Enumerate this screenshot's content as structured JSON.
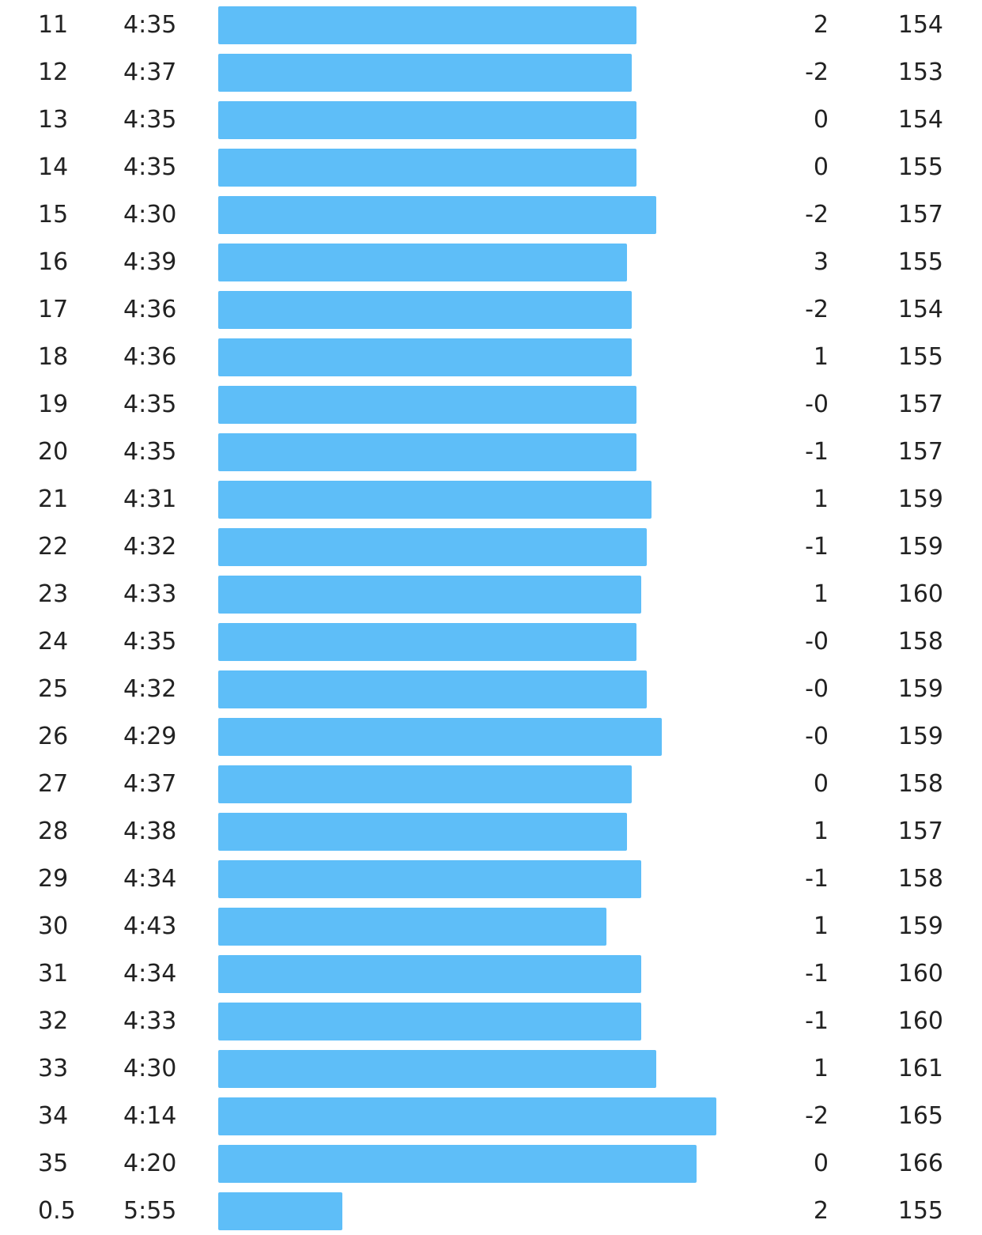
{
  "colors": {
    "bar": "#5ebef8",
    "text": "#222222",
    "background": "#ffffff"
  },
  "splits": [
    {
      "km": "11",
      "pace": "4:35",
      "pace_fraction": 0.839,
      "elevation": "2",
      "heart_rate": "154"
    },
    {
      "km": "12",
      "pace": "4:37",
      "pace_fraction": 0.83,
      "elevation": "-2",
      "heart_rate": "153"
    },
    {
      "km": "13",
      "pace": "4:35",
      "pace_fraction": 0.839,
      "elevation": "0",
      "heart_rate": "154"
    },
    {
      "km": "14",
      "pace": "4:35",
      "pace_fraction": 0.839,
      "elevation": "0",
      "heart_rate": "155"
    },
    {
      "km": "15",
      "pace": "4:30",
      "pace_fraction": 0.879,
      "elevation": "-2",
      "heart_rate": "157"
    },
    {
      "km": "16",
      "pace": "4:39",
      "pace_fraction": 0.82,
      "elevation": "3",
      "heart_rate": "155"
    },
    {
      "km": "17",
      "pace": "4:36",
      "pace_fraction": 0.83,
      "elevation": "-2",
      "heart_rate": "154"
    },
    {
      "km": "18",
      "pace": "4:36",
      "pace_fraction": 0.83,
      "elevation": "1",
      "heart_rate": "155"
    },
    {
      "km": "19",
      "pace": "4:35",
      "pace_fraction": 0.839,
      "elevation": "-0",
      "heart_rate": "157"
    },
    {
      "km": "20",
      "pace": "4:35",
      "pace_fraction": 0.839,
      "elevation": "-1",
      "heart_rate": "157"
    },
    {
      "km": "21",
      "pace": "4:31",
      "pace_fraction": 0.87,
      "elevation": "1",
      "heart_rate": "159"
    },
    {
      "km": "22",
      "pace": "4:32",
      "pace_fraction": 0.86,
      "elevation": "-1",
      "heart_rate": "159"
    },
    {
      "km": "23",
      "pace": "4:33",
      "pace_fraction": 0.849,
      "elevation": "1",
      "heart_rate": "160"
    },
    {
      "km": "24",
      "pace": "4:35",
      "pace_fraction": 0.839,
      "elevation": "-0",
      "heart_rate": "158"
    },
    {
      "km": "25",
      "pace": "4:32",
      "pace_fraction": 0.86,
      "elevation": "-0",
      "heart_rate": "159"
    },
    {
      "km": "26",
      "pace": "4:29",
      "pace_fraction": 0.89,
      "elevation": "-0",
      "heart_rate": "159"
    },
    {
      "km": "27",
      "pace": "4:37",
      "pace_fraction": 0.83,
      "elevation": "0",
      "heart_rate": "158"
    },
    {
      "km": "28",
      "pace": "4:38",
      "pace_fraction": 0.82,
      "elevation": "1",
      "heart_rate": "157"
    },
    {
      "km": "29",
      "pace": "4:34",
      "pace_fraction": 0.849,
      "elevation": "-1",
      "heart_rate": "158"
    },
    {
      "km": "30",
      "pace": "4:43",
      "pace_fraction": 0.779,
      "elevation": "1",
      "heart_rate": "159"
    },
    {
      "km": "31",
      "pace": "4:34",
      "pace_fraction": 0.849,
      "elevation": "-1",
      "heart_rate": "160"
    },
    {
      "km": "32",
      "pace": "4:33",
      "pace_fraction": 0.849,
      "elevation": "-1",
      "heart_rate": "160"
    },
    {
      "km": "33",
      "pace": "4:30",
      "pace_fraction": 0.879,
      "elevation": "1",
      "heart_rate": "161"
    },
    {
      "km": "34",
      "pace": "4:14",
      "pace_fraction": 1.0,
      "elevation": "-2",
      "heart_rate": "165"
    },
    {
      "km": "35",
      "pace": "4:20",
      "pace_fraction": 0.96,
      "elevation": "0",
      "heart_rate": "166"
    },
    {
      "km": "0.5",
      "pace": "5:55",
      "pace_fraction": 0.249,
      "elevation": "2",
      "heart_rate": "155"
    }
  ]
}
